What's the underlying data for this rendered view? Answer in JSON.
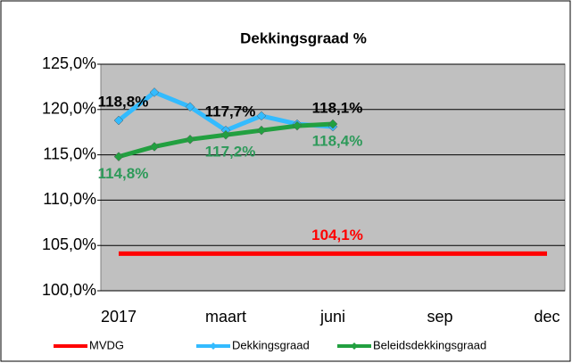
{
  "chart_data": {
    "type": "line",
    "title": "Dekkingsgraad %",
    "categories": [
      "2017",
      null,
      null,
      "maart",
      null,
      null,
      "juni",
      null,
      null,
      "sep",
      null,
      null,
      "dec"
    ],
    "series": [
      {
        "name": "MVDG",
        "color": "#ff0000",
        "label_color": "#ff0000",
        "marker": false,
        "values": [
          104.1,
          104.1,
          104.1,
          104.1,
          104.1,
          104.1,
          104.1,
          104.1,
          104.1,
          104.1,
          104.1,
          104.1,
          104.1
        ],
        "value_labels": [
          null,
          null,
          null,
          null,
          null,
          null,
          "104,1%",
          null,
          null,
          null,
          null,
          null,
          null
        ]
      },
      {
        "name": "Dekkingsgraad",
        "color": "#33bbff",
        "label_color": "#000000",
        "marker": true,
        "values": [
          118.8,
          121.9,
          120.3,
          117.7,
          119.3,
          118.4,
          118.1,
          null,
          null,
          null,
          null,
          null,
          null
        ],
        "value_labels": [
          "118,8%",
          null,
          null,
          "117,7%",
          null,
          null,
          "118,1%",
          null,
          null,
          null,
          null,
          null,
          null
        ]
      },
      {
        "name": "Beleidsdekkingsgraad",
        "color": "#22a040",
        "label_color": "#2e9a5a",
        "marker": true,
        "values": [
          114.8,
          115.9,
          116.7,
          117.2,
          117.7,
          118.2,
          118.4,
          null,
          null,
          null,
          null,
          null,
          null
        ],
        "value_labels": [
          "114,8%",
          null,
          null,
          "117,2%",
          null,
          null,
          "118,4%",
          null,
          null,
          null,
          null,
          null,
          null
        ]
      }
    ],
    "ylim": [
      100,
      125
    ],
    "yticks": [
      {
        "value": 100,
        "label": "100,0%"
      },
      {
        "value": 105,
        "label": "105,0%"
      },
      {
        "value": 110,
        "label": "110,0%"
      },
      {
        "value": 115,
        "label": "115,0%"
      },
      {
        "value": 120,
        "label": "120,0%"
      },
      {
        "value": 125,
        "label": "125,0%"
      }
    ],
    "grid": true,
    "legend": "bottom"
  }
}
